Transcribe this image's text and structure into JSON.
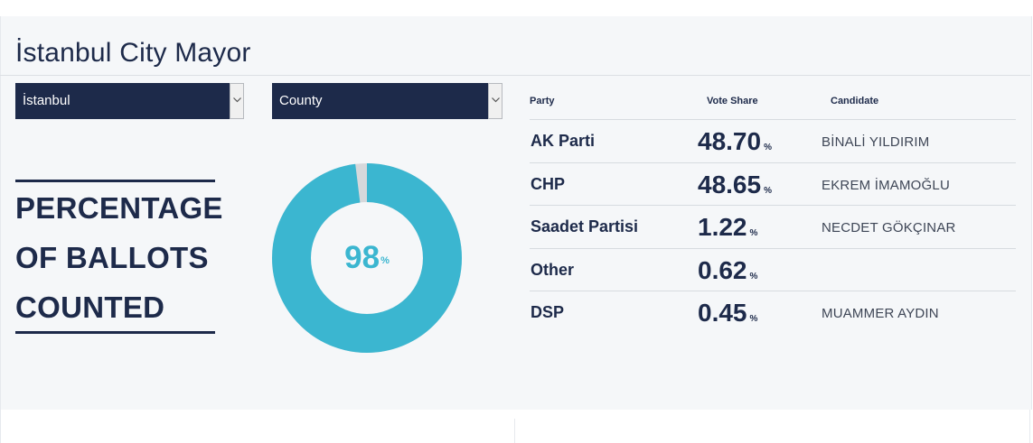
{
  "header": {
    "title": "İstanbul City Mayor"
  },
  "filters": {
    "city_select": {
      "value": "İstanbul"
    },
    "district_select": {
      "value": "County"
    }
  },
  "ballots": {
    "label_lines": [
      "PERCENTAGE",
      "OF BALLOTS",
      "COUNTED"
    ],
    "percent_value": "98",
    "percent_unit": "%",
    "counted_fraction": 0.98,
    "color_counted": "#3bb6d0",
    "color_remaining": "#d6d8db"
  },
  "results": {
    "headers": {
      "party": "Party",
      "vote_share": "Vote Share",
      "candidate": "Candidate"
    },
    "rows": [
      {
        "party": "AK Parti",
        "share": "48.70",
        "unit": "%",
        "candidate": "BİNALİ YILDIRIM"
      },
      {
        "party": "CHP",
        "share": "48.65",
        "unit": "%",
        "candidate": "EKREM İMAMOĞLU"
      },
      {
        "party": "Saadet Partisi",
        "share": "1.22",
        "unit": "%",
        "candidate": "NECDET GÖKÇINAR"
      },
      {
        "party": "Other",
        "share": "0.62",
        "unit": "%",
        "candidate": ""
      },
      {
        "party": "DSP",
        "share": "0.45",
        "unit": "%",
        "candidate": "MUAMMER AYDIN"
      }
    ]
  }
}
